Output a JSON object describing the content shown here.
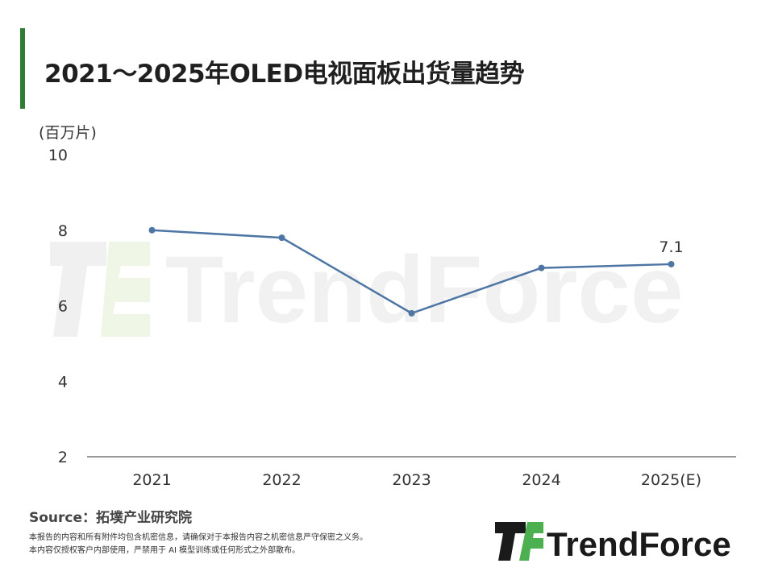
{
  "header": {
    "title": "2021～2025年OLED电视面板出货量趋势",
    "accent_color": "#2e7d32"
  },
  "watermark": {
    "text": "TrendForce"
  },
  "chart_data": {
    "type": "line",
    "title": "2021～2025年OLED电视面板出货量趋势",
    "ylabel": "(百万片)",
    "xlabel": "",
    "categories": [
      "2021",
      "2022",
      "2023",
      "2024",
      "2025(E)"
    ],
    "series": [
      {
        "values": [
          8.0,
          7.8,
          5.8,
          7.0,
          7.1
        ],
        "color": "#4e76a4"
      }
    ],
    "ylim": [
      2,
      10
    ],
    "yticks": [
      2,
      4,
      6,
      8,
      10
    ],
    "data_labels": [
      {
        "index": 4,
        "text": "7.1"
      }
    ],
    "grid": false,
    "legend": "none"
  },
  "footer": {
    "source": "Source：拓墣产业研究院",
    "disclaimer_line1": "本报告的内容和所有附件均包含机密信息，请确保对于本报告内容之机密信息严守保密之义务。",
    "disclaimer_line2": "本内容仅授权客户内部使用，严禁用于 AI 模型训练或任何形式之外部散布。"
  },
  "logo": {
    "text": "TrendForce",
    "icon": "trendforce-logo-icon",
    "brand_green": "#4caf50",
    "brand_dark": "#1a1a1a"
  }
}
